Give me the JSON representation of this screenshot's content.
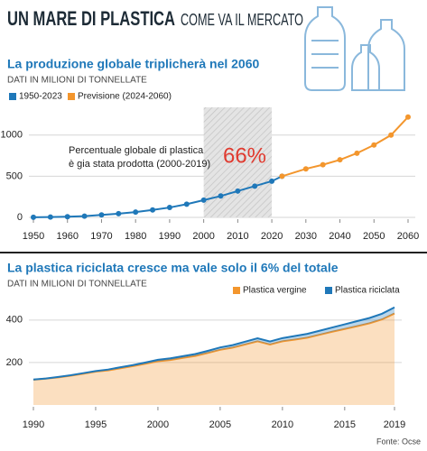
{
  "header": {
    "title": "UN MARE DI PLASTICA",
    "subtitle": "COME VA IL MERCATO"
  },
  "source": "Fonte: Ocse",
  "chart_data": [
    {
      "type": "line",
      "title": "La produzione globale triplicherà nel 2060",
      "subtitle": "DATI IN MILIONI DI TONNELLATE",
      "series": [
        {
          "name": "1950-2023",
          "color": "#1f78b9",
          "x": [
            1950,
            1955,
            1960,
            1965,
            1970,
            1975,
            1980,
            1985,
            1990,
            1995,
            2000,
            2005,
            2010,
            2015,
            2020,
            2023
          ],
          "values": [
            2,
            4,
            8,
            15,
            30,
            45,
            65,
            90,
            120,
            160,
            210,
            260,
            320,
            380,
            440,
            500
          ]
        },
        {
          "name": "Previsione (2024-2060)",
          "color": "#f3962d",
          "x": [
            2023,
            2030,
            2035,
            2040,
            2045,
            2050,
            2055,
            2060
          ],
          "values": [
            500,
            590,
            640,
            700,
            780,
            880,
            1000,
            1220
          ]
        }
      ],
      "shaded_x": [
        2000,
        2020
      ],
      "annotations": [
        "Percentuale globale di plastica",
        "è gia stata prodotta (2000-2019)",
        "66%"
      ],
      "xlim": [
        1950,
        2060
      ],
      "xticks": [
        1950,
        1960,
        1970,
        1980,
        1990,
        2000,
        2010,
        2020,
        2030,
        2040,
        2050,
        2060
      ],
      "ylim": [
        0,
        1250
      ],
      "yticks": [
        0,
        500,
        1000
      ],
      "grid": true
    },
    {
      "type": "area",
      "title": "La plastica riciclata cresce ma vale solo il 6% del totale",
      "subtitle": "DATI IN MILIONI DI TONNELLATE",
      "x": [
        1990,
        1991,
        1992,
        1993,
        1994,
        1995,
        1996,
        1997,
        1998,
        1999,
        2000,
        2001,
        2002,
        2003,
        2004,
        2005,
        2006,
        2007,
        2008,
        2009,
        2010,
        2011,
        2012,
        2013,
        2014,
        2015,
        2016,
        2017,
        2018,
        2019
      ],
      "series": [
        {
          "name": "Plastica vergine",
          "color": "#f3962d",
          "values": [
            119,
            124,
            130,
            138,
            147,
            157,
            163,
            173,
            183,
            194,
            206,
            212,
            222,
            231,
            245,
            260,
            270,
            285,
            300,
            285,
            300,
            308,
            317,
            331,
            345,
            358,
            371,
            385,
            403,
            431
          ]
        },
        {
          "name": "Plastica riciclata",
          "color": "#1f78b9",
          "values": [
            1,
            1,
            2,
            2,
            3,
            3,
            4,
            5,
            5,
            6,
            7,
            8,
            8,
            9,
            10,
            11,
            12,
            13,
            14,
            14,
            15,
            17,
            18,
            19,
            20,
            22,
            24,
            25,
            27,
            29
          ]
        }
      ],
      "xlim": [
        1990,
        2019
      ],
      "xticks": [
        1990,
        1995,
        2000,
        2005,
        2010,
        2015,
        2019
      ],
      "ylim": [
        0,
        480
      ],
      "yticks": [
        200,
        400
      ],
      "grid": true
    }
  ]
}
